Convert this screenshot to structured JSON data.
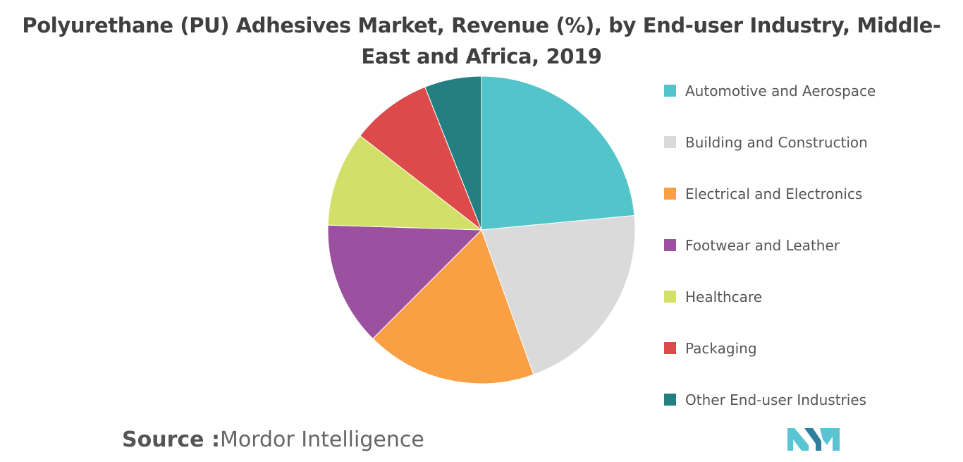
{
  "chart_data": {
    "type": "pie",
    "title": "Polyurethane (PU) Adhesives Market, Revenue (%), by End-user Industry, Middle-East and Africa, 2019",
    "slices": [
      {
        "label": "Automotive and Aerospace",
        "value": 23.5,
        "color": "#52c4ca"
      },
      {
        "label": "Building and Construction",
        "value": 21.0,
        "color": "#dadada"
      },
      {
        "label": "Electrical and Electronics",
        "value": 18.0,
        "color": "#f9a045"
      },
      {
        "label": "Footwear and Leather",
        "value": 13.0,
        "color": "#9b50a0"
      },
      {
        "label": "Healthcare",
        "value": 10.0,
        "color": "#d2e06a"
      },
      {
        "label": "Packaging",
        "value": 8.5,
        "color": "#dd4a4a"
      },
      {
        "label": "Other End-user Industries",
        "value": 6.0,
        "color": "#237f81"
      }
    ],
    "legend_position": "right"
  },
  "source": {
    "label": "Source :",
    "text": "Mordor Intelligence"
  },
  "logo": {
    "colors": [
      "#5ac4d2",
      "#2f7f9c"
    ]
  }
}
